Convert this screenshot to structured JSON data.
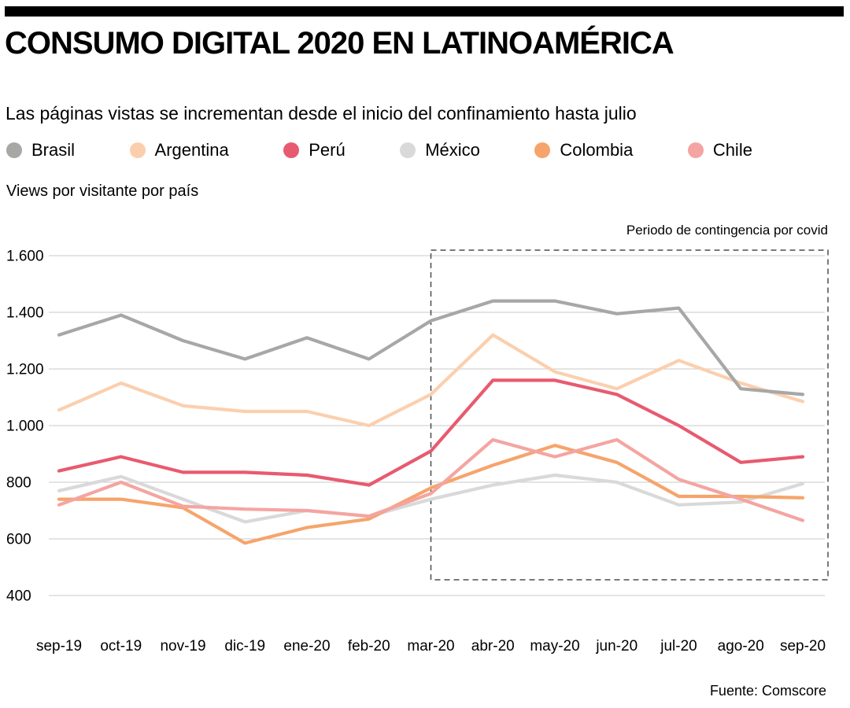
{
  "header": {
    "title": "CONSUMO DIGITAL 2020 EN LATINOAMÉRICA",
    "subtitle": "Las páginas vistas se incrementan desde el inicio del confinamiento hasta julio"
  },
  "footer": {
    "source": "Fuente: Comscore"
  },
  "chart_data": {
    "type": "line",
    "title": "CONSUMO DIGITAL 2020 EN LATINOAMÉRICA",
    "ylabel": "Views por visitante por país",
    "xlabel": "",
    "grid": true,
    "legend_position": "top",
    "ylim": [
      400,
      1600
    ],
    "categories": [
      "sep-19",
      "oct-19",
      "nov-19",
      "dic-19",
      "ene-20",
      "feb-20",
      "mar-20",
      "abr-20",
      "may-20",
      "jun-20",
      "jul-20",
      "ago-20",
      "sep-20"
    ],
    "yticks": [
      {
        "value": 400,
        "label": "400"
      },
      {
        "value": 600,
        "label": "600"
      },
      {
        "value": 800,
        "label": "800"
      },
      {
        "value": 1000,
        "label": "1.000"
      },
      {
        "value": 1200,
        "label": "1.200"
      },
      {
        "value": 1400,
        "label": "1.400"
      },
      {
        "value": 1600,
        "label": "1.600"
      }
    ],
    "series": [
      {
        "name": "Brasil",
        "color": "#a7a7a6",
        "z": 5,
        "values": [
          1320,
          1390,
          1300,
          1235,
          1310,
          1235,
          1370,
          1440,
          1440,
          1395,
          1415,
          1130,
          1110
        ]
      },
      {
        "name": "Argentina",
        "color": "#fbcfae",
        "z": 4,
        "values": [
          1055,
          1150,
          1070,
          1050,
          1050,
          1000,
          1110,
          1320,
          1190,
          1130,
          1230,
          1150,
          1085
        ]
      },
      {
        "name": "Perú",
        "color": "#e85a6f",
        "z": 6,
        "values": [
          840,
          890,
          835,
          835,
          825,
          790,
          910,
          1160,
          1160,
          1110,
          1000,
          870,
          890
        ]
      },
      {
        "name": "México",
        "color": "#d9d9d9",
        "z": 1,
        "values": [
          770,
          820,
          740,
          660,
          700,
          680,
          740,
          790,
          825,
          800,
          720,
          730,
          795
        ]
      },
      {
        "name": "Colombia",
        "color": "#f6a46b",
        "z": 2,
        "values": [
          740,
          740,
          710,
          585,
          640,
          670,
          780,
          860,
          930,
          870,
          750,
          750,
          745
        ]
      },
      {
        "name": "Chile",
        "color": "#f4a5a1",
        "z": 3,
        "values": [
          720,
          800,
          715,
          705,
          700,
          680,
          760,
          950,
          890,
          950,
          810,
          740,
          665
        ]
      }
    ],
    "highlight": {
      "label": "Periodo de contingencia por covid",
      "from_index": 6,
      "to_index": 12
    }
  }
}
